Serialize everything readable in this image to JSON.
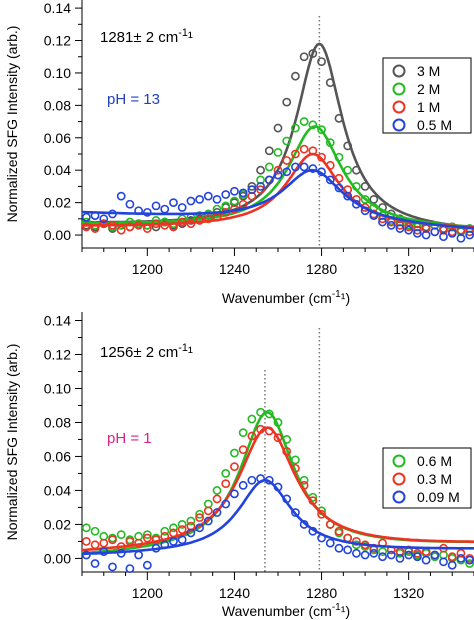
{
  "chart_data": [
    {
      "type": "scatter",
      "title": "",
      "xlabel": "Wavenumber (cm⁻¹)",
      "ylabel": "Normalized SFG Intensity (arb.)",
      "xlim": [
        1170,
        1350
      ],
      "ylim": [
        -0.008,
        0.145
      ],
      "x_ticks": [
        1200,
        1240,
        1280,
        1320
      ],
      "y_ticks": [
        0.0,
        0.02,
        0.04,
        0.06,
        0.08,
        0.1,
        0.12,
        0.14
      ],
      "y_tick_labels": [
        "0.00",
        "0.02",
        "0.04",
        "0.06",
        "0.08",
        "0.10",
        "0.12",
        "0.14"
      ],
      "grid": false,
      "legend_position": "top-right",
      "annotations": [
        {
          "text": "1281± 2 cm⁻¹",
          "color": "#000000"
        },
        {
          "text": "pH =  13",
          "color": "#2040c0"
        }
      ],
      "reference_lines": [
        1279
      ],
      "series": [
        {
          "name": "3 M",
          "color": "#555555",
          "center": 1279,
          "width": 13,
          "baseline": 0.003,
          "slope": 3e-05,
          "peak": 0.115,
          "x": [
            1172,
            1176,
            1180,
            1184,
            1188,
            1192,
            1196,
            1200,
            1204,
            1208,
            1212,
            1216,
            1220,
            1224,
            1228,
            1232,
            1236,
            1240,
            1244,
            1248,
            1252,
            1256,
            1260,
            1264,
            1268,
            1272,
            1276,
            1280,
            1284,
            1288,
            1292,
            1296,
            1300,
            1304,
            1308,
            1312,
            1316,
            1320,
            1324,
            1328,
            1332,
            1336,
            1340,
            1344,
            1348
          ],
          "y": [
            0.006,
            0.005,
            0.007,
            0.004,
            0.006,
            0.005,
            0.007,
            0.006,
            0.005,
            0.008,
            0.006,
            0.007,
            0.009,
            0.01,
            0.012,
            0.014,
            0.017,
            0.02,
            0.024,
            0.03,
            0.04,
            0.052,
            0.066,
            0.082,
            0.098,
            0.11,
            0.112,
            0.107,
            0.094,
            0.072,
            0.055,
            0.04,
            0.03,
            0.022,
            0.017,
            0.013,
            0.01,
            0.008,
            0.007,
            0.005,
            0.006,
            0.004,
            0.005,
            0.003,
            0.004
          ]
        },
        {
          "name": "2 M",
          "color": "#22bb22",
          "center": 1277,
          "width": 15,
          "baseline": 0.004,
          "slope": 2e-05,
          "peak": 0.063,
          "x": [
            1172,
            1176,
            1180,
            1184,
            1188,
            1192,
            1196,
            1200,
            1204,
            1208,
            1212,
            1216,
            1220,
            1224,
            1228,
            1232,
            1236,
            1240,
            1244,
            1248,
            1252,
            1256,
            1260,
            1264,
            1268,
            1272,
            1276,
            1280,
            1284,
            1288,
            1292,
            1296,
            1300,
            1304,
            1308,
            1312,
            1316,
            1320,
            1324,
            1328,
            1332,
            1336,
            1340,
            1344,
            1348
          ],
          "y": [
            0.008,
            0.006,
            0.007,
            0.005,
            0.006,
            0.008,
            0.007,
            0.006,
            0.009,
            0.008,
            0.007,
            0.01,
            0.011,
            0.012,
            0.013,
            0.016,
            0.018,
            0.021,
            0.025,
            0.028,
            0.034,
            0.042,
            0.051,
            0.058,
            0.066,
            0.07,
            0.068,
            0.065,
            0.057,
            0.048,
            0.04,
            0.03,
            0.022,
            0.017,
            0.012,
            0.009,
            0.008,
            0.006,
            0.005,
            0.004,
            0.006,
            0.003,
            0.005,
            0.002,
            0.004
          ]
        },
        {
          "name": "1 M",
          "color": "#ee3322",
          "center": 1276,
          "width": 15,
          "baseline": 0.004,
          "slope": 1e-05,
          "peak": 0.046,
          "x": [
            1172,
            1176,
            1180,
            1184,
            1188,
            1192,
            1196,
            1200,
            1204,
            1208,
            1212,
            1216,
            1220,
            1224,
            1228,
            1232,
            1236,
            1240,
            1244,
            1248,
            1252,
            1256,
            1260,
            1264,
            1268,
            1272,
            1276,
            1280,
            1284,
            1288,
            1292,
            1296,
            1300,
            1304,
            1308,
            1312,
            1316,
            1320,
            1324,
            1328,
            1332,
            1336,
            1340,
            1344,
            1348
          ],
          "y": [
            0.005,
            0.004,
            0.007,
            0.006,
            0.003,
            0.005,
            0.006,
            0.004,
            0.007,
            0.006,
            0.005,
            0.008,
            0.007,
            0.009,
            0.01,
            0.011,
            0.014,
            0.016,
            0.019,
            0.024,
            0.028,
            0.034,
            0.04,
            0.046,
            0.05,
            0.053,
            0.052,
            0.048,
            0.043,
            0.035,
            0.028,
            0.022,
            0.017,
            0.013,
            0.01,
            0.008,
            0.006,
            0.005,
            0.003,
            0.004,
            0.002,
            0.003,
            0.002,
            0.003,
            0.002
          ]
        },
        {
          "name": "0.5 M",
          "color": "#2244dd",
          "center": 1276,
          "width": 17,
          "baseline": 0.007,
          "slope": 6e-05,
          "peak": 0.033,
          "x": [
            1172,
            1176,
            1180,
            1184,
            1188,
            1192,
            1196,
            1200,
            1204,
            1208,
            1212,
            1216,
            1220,
            1224,
            1228,
            1232,
            1236,
            1240,
            1244,
            1248,
            1252,
            1256,
            1260,
            1264,
            1268,
            1272,
            1276,
            1280,
            1284,
            1288,
            1292,
            1296,
            1300,
            1304,
            1308,
            1312,
            1316,
            1320,
            1324,
            1328,
            1332,
            1336,
            1340,
            1344,
            1348
          ],
          "y": [
            0.011,
            0.012,
            0.01,
            0.013,
            0.024,
            0.019,
            0.015,
            0.014,
            0.018,
            0.016,
            0.02,
            0.017,
            0.021,
            0.022,
            0.024,
            0.022,
            0.025,
            0.027,
            0.026,
            0.028,
            0.03,
            0.034,
            0.037,
            0.039,
            0.042,
            0.042,
            0.041,
            0.039,
            0.034,
            0.029,
            0.024,
            0.019,
            0.015,
            0.012,
            0.008,
            0.006,
            0.004,
            0.003,
            0.001,
            0.0,
            0.002,
            -0.001,
            0.001,
            -0.002,
            0.0
          ]
        }
      ]
    },
    {
      "type": "scatter",
      "title": "",
      "xlabel": "Wavenumber (cm⁻¹)",
      "ylabel": "Normalized SFG Intensity (arb.)",
      "xlim": [
        1170,
        1350
      ],
      "ylim": [
        -0.008,
        0.145
      ],
      "x_ticks": [
        1200,
        1240,
        1280,
        1320
      ],
      "y_ticks": [
        0.0,
        0.02,
        0.04,
        0.06,
        0.08,
        0.1,
        0.12,
        0.14
      ],
      "y_tick_labels": [
        "0.00",
        "0.02",
        "0.04",
        "0.06",
        "0.08",
        "0.10",
        "0.12",
        "0.14"
      ],
      "grid": false,
      "legend_position": "bottom-right",
      "annotations": [
        {
          "text": "1256± 2 cm⁻¹",
          "color": "#000000"
        },
        {
          "text": "pH = 1",
          "color": "#e0208a"
        }
      ],
      "reference_lines": [
        1254,
        1279
      ],
      "series": [
        {
          "name": "0.6 M",
          "color": "#22bb22",
          "center": 1255,
          "width": 15,
          "baseline": 0.004,
          "slope": -4e-05,
          "peak": 0.082,
          "x": [
            1172,
            1176,
            1180,
            1184,
            1188,
            1192,
            1196,
            1200,
            1204,
            1208,
            1212,
            1216,
            1220,
            1224,
            1228,
            1232,
            1236,
            1240,
            1244,
            1248,
            1252,
            1256,
            1260,
            1264,
            1268,
            1272,
            1276,
            1280,
            1284,
            1288,
            1292,
            1296,
            1300,
            1304,
            1308,
            1312,
            1316,
            1320,
            1324,
            1328,
            1332,
            1336,
            1340,
            1344,
            1348
          ],
          "y": [
            0.018,
            0.016,
            0.013,
            0.012,
            0.014,
            0.011,
            0.013,
            0.014,
            0.012,
            0.016,
            0.018,
            0.02,
            0.022,
            0.026,
            0.032,
            0.04,
            0.05,
            0.062,
            0.074,
            0.082,
            0.086,
            0.085,
            0.08,
            0.07,
            0.058,
            0.046,
            0.036,
            0.028,
            0.02,
            0.015,
            0.012,
            0.008,
            0.007,
            0.005,
            0.004,
            0.005,
            0.003,
            0.004,
            0.002,
            0.003,
            0.001,
            0.002,
            0.0,
            -0.001,
            -0.003
          ]
        },
        {
          "name": "0.3 M",
          "color": "#ee3322",
          "center": 1255,
          "width": 16,
          "baseline": 0.005,
          "slope": -3e-05,
          "peak": 0.072,
          "x": [
            1172,
            1176,
            1180,
            1184,
            1188,
            1192,
            1196,
            1200,
            1204,
            1208,
            1212,
            1216,
            1220,
            1224,
            1228,
            1232,
            1236,
            1240,
            1244,
            1248,
            1252,
            1256,
            1260,
            1264,
            1268,
            1272,
            1276,
            1280,
            1284,
            1288,
            1292,
            1296,
            1300,
            1304,
            1308,
            1312,
            1316,
            1320,
            1324,
            1328,
            1332,
            1336,
            1340,
            1344,
            1348
          ],
          "y": [
            0.01,
            0.008,
            0.009,
            0.011,
            0.007,
            0.01,
            0.009,
            0.012,
            0.011,
            0.013,
            0.015,
            0.017,
            0.019,
            0.024,
            0.028,
            0.035,
            0.044,
            0.054,
            0.064,
            0.072,
            0.076,
            0.075,
            0.071,
            0.063,
            0.053,
            0.043,
            0.034,
            0.026,
            0.02,
            0.016,
            0.012,
            0.01,
            0.008,
            0.006,
            0.009,
            0.005,
            0.004,
            0.005,
            0.003,
            0.004,
            0.002,
            0.006,
            0.001,
            0.003,
            0.0
          ]
        },
        {
          "name": "0.09 M",
          "color": "#2244dd",
          "center": 1254,
          "width": 15,
          "baseline": 0.003,
          "slope": -2e-05,
          "peak": 0.043,
          "x": [
            1172,
            1176,
            1180,
            1184,
            1188,
            1192,
            1196,
            1200,
            1204,
            1208,
            1212,
            1216,
            1220,
            1224,
            1228,
            1232,
            1236,
            1240,
            1244,
            1248,
            1252,
            1256,
            1260,
            1264,
            1268,
            1272,
            1276,
            1280,
            1284,
            1288,
            1292,
            1296,
            1300,
            1304,
            1308,
            1312,
            1316,
            1320,
            1324,
            1328,
            1332,
            1336,
            1340,
            1344,
            1348
          ],
          "y": [
            0.002,
            -0.003,
            0.004,
            -0.005,
            0.003,
            -0.006,
            0.002,
            -0.004,
            0.006,
            0.008,
            0.01,
            0.011,
            0.015,
            0.018,
            0.022,
            0.027,
            0.032,
            0.038,
            0.043,
            0.046,
            0.047,
            0.046,
            0.042,
            0.035,
            0.027,
            0.02,
            0.016,
            0.012,
            0.009,
            0.006,
            0.005,
            0.003,
            0.002,
            0.003,
            0.001,
            0.002,
            0.0,
            0.002,
            0.001,
            -0.001,
            0.002,
            -0.002,
            -0.004,
            0.0,
            -0.001
          ]
        }
      ]
    }
  ]
}
